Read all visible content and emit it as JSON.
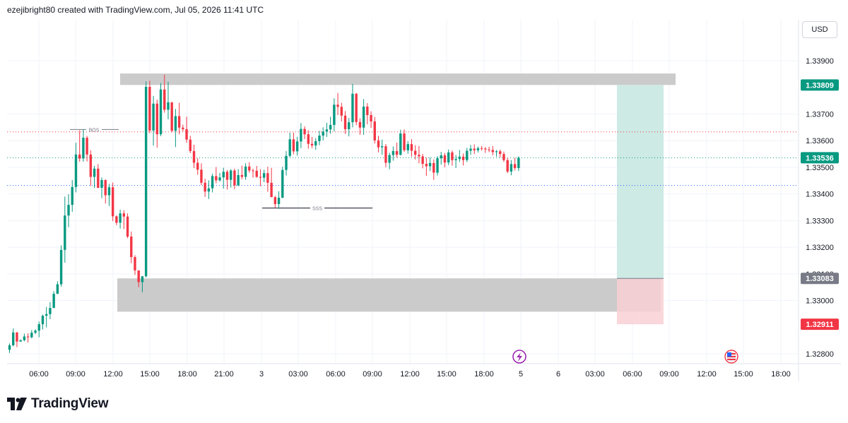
{
  "header": {
    "title": "ezejibright80 created with TradingView.com, Jul 05, 2026 11:41 UTC"
  },
  "currency": "USD",
  "brand": {
    "name": "TradingView"
  },
  "colors": {
    "up": "#089981",
    "down": "#f23645",
    "zone": "#c8c8c8",
    "profit": "#cdeae5",
    "loss": "#f8d0d4",
    "tag_green": "#089981",
    "tag_gray": "#787b86",
    "tag_red": "#f23645"
  },
  "chart_data": {
    "type": "candlestick",
    "symbol_note": "",
    "ylim": [
      1.3273,
      1.3408
    ],
    "y_ticks": [
      "1.33900",
      "1.33700",
      "1.33600",
      "1.33500",
      "1.33400",
      "1.33300",
      "1.33200",
      "1.33100",
      "1.33000",
      "1.32800"
    ],
    "x_ticks": [
      "06:00",
      "09:00",
      "12:00",
      "15:00",
      "18:00",
      "21:00",
      "3",
      "03:00",
      "06:00",
      "09:00",
      "12:00",
      "15:00",
      "18:00",
      "5",
      "6",
      "03:00",
      "06:00",
      "09:00",
      "12:00",
      "15:00",
      "18:00"
    ],
    "price_tags": [
      {
        "label": "1.33809",
        "value": 1.33809,
        "kind": "green"
      },
      {
        "label": "1.33536",
        "value": 1.33536,
        "kind": "green"
      },
      {
        "label": "1.33083",
        "value": 1.33083,
        "kind": "gray"
      },
      {
        "label": "1.32911",
        "value": 1.32911,
        "kind": "red"
      }
    ],
    "annotations": [
      {
        "text": "BOS",
        "value": 1.33642
      },
      {
        "text": "SSS",
        "value": 1.33347
      }
    ],
    "horizontal_lines": [
      {
        "name": "red-dotted",
        "value": 1.33633
      },
      {
        "name": "green-dotted",
        "value": 1.33536
      },
      {
        "name": "blue-dotted",
        "value": 1.33432
      }
    ],
    "zones": [
      {
        "name": "supply-zone",
        "top": 1.33852,
        "bottom": 1.33809
      },
      {
        "name": "demand-zone",
        "top": 1.33083,
        "bottom": 1.32958
      }
    ],
    "position": {
      "entry": 1.33083,
      "target": 1.33809,
      "stop": 1.32911
    },
    "candles": [
      [
        1.32815,
        1.32839,
        1.32803,
        1.32832
      ],
      [
        1.32832,
        1.32895,
        1.32828,
        1.3288
      ],
      [
        1.3288,
        1.32882,
        1.32825,
        1.32846
      ],
      [
        1.32846,
        1.32854,
        1.32846,
        1.32851
      ],
      [
        1.32851,
        1.32876,
        1.32847,
        1.32865
      ],
      [
        1.32865,
        1.32877,
        1.32842,
        1.32862
      ],
      [
        1.32862,
        1.32889,
        1.32858,
        1.32879
      ],
      [
        1.32879,
        1.32892,
        1.32874,
        1.32887
      ],
      [
        1.32887,
        1.32921,
        1.32862,
        1.32911
      ],
      [
        1.32911,
        1.32947,
        1.32891,
        1.32943
      ],
      [
        1.32943,
        1.32976,
        1.32899,
        1.32949
      ],
      [
        1.32949,
        1.32994,
        1.3293,
        1.32972
      ],
      [
        1.32972,
        1.33035,
        1.32972,
        1.33025
      ],
      [
        1.33025,
        1.33072,
        1.33025,
        1.33061
      ],
      [
        1.33061,
        1.33207,
        1.33052,
        1.3319
      ],
      [
        1.3319,
        1.3339,
        1.33142,
        1.33319
      ],
      [
        1.33319,
        1.33399,
        1.33275,
        1.33359
      ],
      [
        1.33359,
        1.33452,
        1.33333,
        1.33426
      ],
      [
        1.33426,
        1.33592,
        1.33406,
        1.33548
      ],
      [
        1.33548,
        1.33639,
        1.33521,
        1.33533
      ],
      [
        1.33533,
        1.33642,
        1.33521,
        1.33611
      ],
      [
        1.33611,
        1.33618,
        1.33522,
        1.33548
      ],
      [
        1.33548,
        1.33564,
        1.3343,
        1.33464
      ],
      [
        1.33464,
        1.33505,
        1.33422,
        1.33495
      ],
      [
        1.33495,
        1.33512,
        1.33422,
        1.33423
      ],
      [
        1.33423,
        1.33462,
        1.33384,
        1.33452
      ],
      [
        1.33452,
        1.33455,
        1.33364,
        1.33395
      ],
      [
        1.33395,
        1.33438,
        1.33355,
        1.33425
      ],
      [
        1.33425,
        1.33443,
        1.33298,
        1.33316
      ],
      [
        1.33316,
        1.3332,
        1.33283,
        1.33292
      ],
      [
        1.33292,
        1.33341,
        1.3327,
        1.33327
      ],
      [
        1.33327,
        1.33339,
        1.33268,
        1.33315
      ],
      [
        1.33315,
        1.33327,
        1.33234,
        1.3324
      ],
      [
        1.3324,
        1.33259,
        1.3314,
        1.33163
      ],
      [
        1.33163,
        1.3317,
        1.33096,
        1.33113
      ],
      [
        1.33113,
        1.33112,
        1.3305,
        1.33069
      ],
      [
        1.33069,
        1.33088,
        1.33031,
        1.33091
      ],
      [
        1.33091,
        1.33822,
        1.33087,
        1.33802
      ],
      [
        1.33802,
        1.33825,
        1.33628,
        1.33638
      ],
      [
        1.33638,
        1.33768,
        1.33581,
        1.33739
      ],
      [
        1.33739,
        1.33754,
        1.33574,
        1.33624
      ],
      [
        1.33624,
        1.33816,
        1.33617,
        1.33792
      ],
      [
        1.33792,
        1.33848,
        1.33705,
        1.33716
      ],
      [
        1.33716,
        1.33821,
        1.3368,
        1.33744
      ],
      [
        1.33744,
        1.33745,
        1.33631,
        1.33637
      ],
      [
        1.33637,
        1.33719,
        1.33576,
        1.33692
      ],
      [
        1.33692,
        1.33742,
        1.33624,
        1.33649
      ],
      [
        1.33649,
        1.3366,
        1.33635,
        1.33643
      ],
      [
        1.33643,
        1.3369,
        1.33592,
        1.33604
      ],
      [
        1.33604,
        1.33618,
        1.33553,
        1.33561
      ],
      [
        1.33561,
        1.33585,
        1.33497,
        1.33517
      ],
      [
        1.33517,
        1.33534,
        1.33472,
        1.33491
      ],
      [
        1.33491,
        1.33515,
        1.33433,
        1.33442
      ],
      [
        1.33442,
        1.33457,
        1.33389,
        1.33409
      ],
      [
        1.33409,
        1.33451,
        1.33381,
        1.33421
      ],
      [
        1.33421,
        1.33476,
        1.33406,
        1.33467
      ],
      [
        1.33467,
        1.33501,
        1.3344,
        1.33451
      ],
      [
        1.33451,
        1.33479,
        1.33446,
        1.33462
      ],
      [
        1.33462,
        1.33498,
        1.3342,
        1.33483
      ],
      [
        1.33483,
        1.3349,
        1.33417,
        1.33453
      ],
      [
        1.33453,
        1.33493,
        1.33424,
        1.33488
      ],
      [
        1.33488,
        1.33495,
        1.33418,
        1.33432
      ],
      [
        1.33432,
        1.33493,
        1.33429,
        1.33471
      ],
      [
        1.33471,
        1.33506,
        1.33455,
        1.33464
      ],
      [
        1.33464,
        1.33515,
        1.33453,
        1.33503
      ],
      [
        1.33503,
        1.33519,
        1.3348,
        1.33488
      ],
      [
        1.33488,
        1.33495,
        1.33461,
        1.33487
      ],
      [
        1.33487,
        1.33505,
        1.33461,
        1.33464
      ],
      [
        1.33464,
        1.33493,
        1.33429,
        1.33461
      ],
      [
        1.33461,
        1.33491,
        1.33444,
        1.33478
      ],
      [
        1.33478,
        1.33502,
        1.33408,
        1.33442
      ],
      [
        1.33442,
        1.33498,
        1.3339,
        1.33388
      ],
      [
        1.33388,
        1.33393,
        1.33348,
        1.33362
      ],
      [
        1.33362,
        1.3341,
        1.33344,
        1.33386
      ],
      [
        1.33386,
        1.33502,
        1.33384,
        1.3349
      ],
      [
        1.3349,
        1.33561,
        1.33469,
        1.33543
      ],
      [
        1.33543,
        1.3363,
        1.33538,
        1.33605
      ],
      [
        1.33605,
        1.3363,
        1.33549,
        1.3356
      ],
      [
        1.3356,
        1.33614,
        1.33544,
        1.33597
      ],
      [
        1.33597,
        1.33666,
        1.33572,
        1.33644
      ],
      [
        1.33644,
        1.33654,
        1.33606,
        1.33624
      ],
      [
        1.33624,
        1.33639,
        1.3357,
        1.33588
      ],
      [
        1.33588,
        1.33614,
        1.33572,
        1.33582
      ],
      [
        1.33582,
        1.33609,
        1.33566,
        1.33598
      ],
      [
        1.33598,
        1.33637,
        1.33583,
        1.33619
      ],
      [
        1.33619,
        1.3365,
        1.33601,
        1.33634
      ],
      [
        1.33634,
        1.33667,
        1.33614,
        1.33642
      ],
      [
        1.33642,
        1.3369,
        1.33626,
        1.33659
      ],
      [
        1.33659,
        1.33759,
        1.33635,
        1.33735
      ],
      [
        1.33735,
        1.33779,
        1.33696,
        1.33727
      ],
      [
        1.33727,
        1.33742,
        1.33672,
        1.33694
      ],
      [
        1.33694,
        1.33711,
        1.33625,
        1.33643
      ],
      [
        1.33643,
        1.33685,
        1.33616,
        1.33669
      ],
      [
        1.33669,
        1.33813,
        1.3365,
        1.33776
      ],
      [
        1.33776,
        1.33779,
        1.33658,
        1.3367
      ],
      [
        1.3367,
        1.33684,
        1.33622,
        1.33649
      ],
      [
        1.33649,
        1.33756,
        1.33622,
        1.33728
      ],
      [
        1.33728,
        1.33741,
        1.33661,
        1.33696
      ],
      [
        1.33696,
        1.3371,
        1.33648,
        1.33672
      ],
      [
        1.33672,
        1.33689,
        1.33589,
        1.33601
      ],
      [
        1.33601,
        1.33618,
        1.33556,
        1.33575
      ],
      [
        1.33575,
        1.33604,
        1.33547,
        1.33579
      ],
      [
        1.33579,
        1.33587,
        1.335,
        1.33517
      ],
      [
        1.33517,
        1.33555,
        1.33493,
        1.33546
      ],
      [
        1.33546,
        1.33578,
        1.33525,
        1.33561
      ],
      [
        1.33561,
        1.33593,
        1.33536,
        1.33547
      ],
      [
        1.33547,
        1.33641,
        1.33544,
        1.33627
      ],
      [
        1.33627,
        1.33642,
        1.33558,
        1.33564
      ],
      [
        1.33564,
        1.33598,
        1.33551,
        1.33587
      ],
      [
        1.33587,
        1.33606,
        1.3354,
        1.33562
      ],
      [
        1.33562,
        1.33583,
        1.33529,
        1.33547
      ],
      [
        1.33547,
        1.3358,
        1.33515,
        1.33541
      ],
      [
        1.33541,
        1.3355,
        1.33496,
        1.33513
      ],
      [
        1.33513,
        1.33536,
        1.33468,
        1.33504
      ],
      [
        1.33504,
        1.33537,
        1.33486,
        1.33516
      ],
      [
        1.33516,
        1.3353,
        1.33453,
        1.3348
      ],
      [
        1.3348,
        1.33542,
        1.33469,
        1.33534
      ],
      [
        1.33534,
        1.33558,
        1.3351,
        1.33545
      ],
      [
        1.33545,
        1.33554,
        1.335,
        1.33518
      ],
      [
        1.33518,
        1.33567,
        1.33508,
        1.33556
      ],
      [
        1.33556,
        1.33563,
        1.33506,
        1.33527
      ],
      [
        1.33527,
        1.33546,
        1.33497,
        1.33531
      ],
      [
        1.33531,
        1.33565,
        1.3352,
        1.3354
      ],
      [
        1.3354,
        1.33552,
        1.33507,
        1.33527
      ],
      [
        1.33527,
        1.33573,
        1.3352,
        1.33562
      ],
      [
        1.33562,
        1.33584,
        1.33546,
        1.3357
      ],
      [
        1.3357,
        1.33586,
        1.3355,
        1.33564
      ],
      [
        1.33564,
        1.33578,
        1.33556,
        1.33572
      ],
      [
        1.33572,
        1.3358,
        1.33563,
        1.3357
      ],
      [
        1.3357,
        1.33576,
        1.33554,
        1.33567
      ],
      [
        1.33567,
        1.33577,
        1.33557,
        1.33565
      ],
      [
        1.33565,
        1.3358,
        1.33545,
        1.33557
      ],
      [
        1.33557,
        1.33565,
        1.3354,
        1.3356
      ],
      [
        1.3356,
        1.33566,
        1.33537,
        1.3355
      ],
      [
        1.3355,
        1.33559,
        1.3352,
        1.33527
      ],
      [
        1.33527,
        1.33536,
        1.33478,
        1.33484
      ],
      [
        1.33484,
        1.33527,
        1.3347,
        1.33512
      ],
      [
        1.33512,
        1.33536,
        1.33488,
        1.33497
      ],
      [
        1.33497,
        1.33541,
        1.33486,
        1.33536
      ]
    ]
  }
}
